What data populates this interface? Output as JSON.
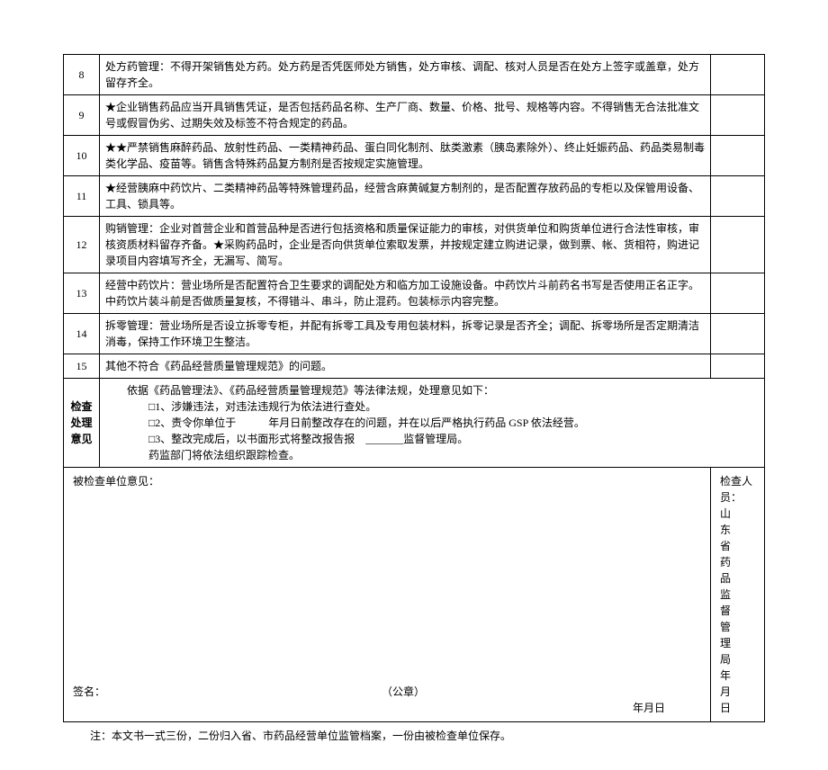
{
  "rows": [
    {
      "num": "8",
      "text": "处方药管理：不得开架销售处方药。处方药是否凭医师处方销售，处方审核、调配、核对人员是否在处方上签字或盖章，处方留存齐全。"
    },
    {
      "num": "9",
      "text": "★企业销售药品应当开具销售凭证，是否包括药品名称、生产厂商、数量、价格、批号、规格等内容。不得销售无合法批准文号或假冒伪劣、过期失效及标签不符合规定的药品。"
    },
    {
      "num": "10",
      "text": "★★严禁销售麻醉药品、放射性药品、一类精神药品、蛋白同化制剂、肽类激素（胰岛素除外）、终止妊娠药品、药品类易制毒类化学品、疫苗等。销售含特殊药品复方制剂是否按规定实施管理。"
    },
    {
      "num": "11",
      "text": "★经营胰麻中药饮片、二类精神药品等特殊管理药品，经营含麻黄碱复方制剂的，是否配置存放药品的专柜以及保管用设备、工具、锁具等。"
    },
    {
      "num": "12",
      "text": "购销管理：企业对首营企业和首营品种是否进行包括资格和质量保证能力的审核，对供货单位和购货单位进行合法性审核，审核资质材料留存齐备。★采购药品时，企业是否向供货单位索取发票，并按规定建立购进记录，做到票、帐、货相符，购进记录项目内容填写齐全，无漏写、简写。"
    },
    {
      "num": "13",
      "text": "经营中药饮片：营业场所是否配置符合卫生要求的调配处方和临方加工设施设备。中药饮片斗前药名书写是否使用正名正字。中药饮片装斗前是否做质量复核，不得错斗、串斗，防止混药。包装标示内容完整。"
    },
    {
      "num": "14",
      "text": "拆零管理：营业场所是否设立拆零专柜，并配有拆零工具及专用包装材料，拆零记录是否齐全；调配、拆零场所是否定期清洁消毒，保持工作环境卫生整洁。"
    },
    {
      "num": "15",
      "text": "其他不符合《药品经营质量管理规范》的问题。"
    }
  ],
  "opinion": {
    "label": "检查处理意见",
    "intro": "依据《药品管理法》、《药品经营质量管理规范》等法律法规，处理意见如下：",
    "item1": "□1、涉嫌违法，对违法违规行为依法进行查处。",
    "item2": "□2、责令你单位于　　　年月日前整改存在的问题，并在以后严格执行药品 GSP 依法经营。",
    "item3": "□3、整改完成后，以书面形式将整改报告报　_______监督管理局。",
    "outro": "药监部门将依法组织跟踪检查。"
  },
  "signature": {
    "left_title": "被检查单位意见：",
    "left_sign": "签名：",
    "left_seal": "（公章）",
    "left_date": "年月日",
    "right_title": "检查人员：",
    "right_org": "山东省药品监督管理局",
    "right_date": "年月日"
  },
  "footer": "注：本文书一式三份，二份归入省、市药品经营单位监管档案，一份由被检查单位保存。"
}
